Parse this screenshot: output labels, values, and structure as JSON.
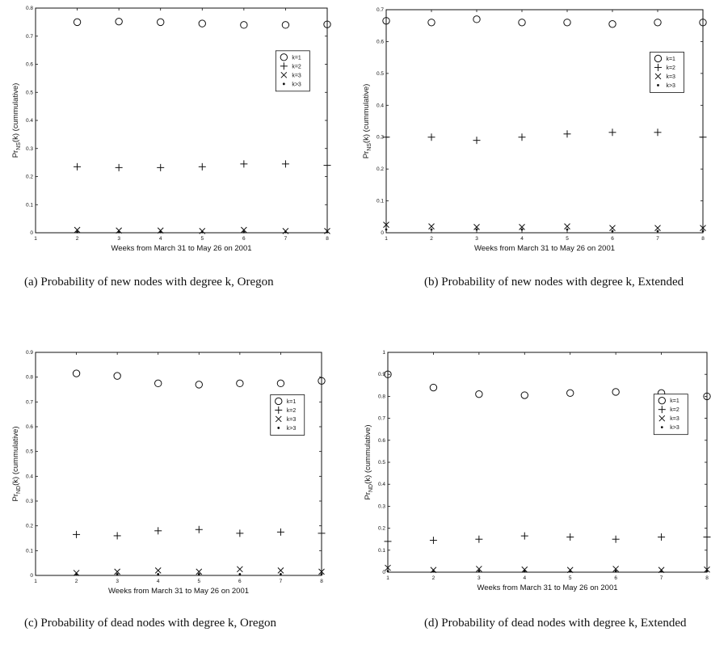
{
  "chart_data": [
    {
      "type": "scatter",
      "ylabel_main": "Pr",
      "ylabel_sub": "NS",
      "ylabel_rest": "(k) (cummulative)",
      "xlabel": "Weeks from March 31 to May 26 on 2001",
      "xlim": [
        1,
        8
      ],
      "ylim": [
        0,
        0.8
      ],
      "xticks": [
        "1",
        "2",
        "3",
        "4",
        "5",
        "6",
        "7",
        "8"
      ],
      "yticks": [
        "0",
        "0.1",
        "0.2",
        "0.3",
        "0.4",
        "0.5",
        "0.6",
        "0.7",
        "0.8"
      ],
      "legend": [
        "k=1",
        "k=2",
        "k=3",
        "k>3"
      ],
      "legend_position": "right",
      "x": [
        2,
        3,
        4,
        5,
        6,
        7,
        8
      ],
      "series": [
        {
          "name": "k=1",
          "marker": "circle",
          "values": [
            0.75,
            0.752,
            0.75,
            0.745,
            0.74,
            0.74,
            0.742
          ]
        },
        {
          "name": "k=2",
          "marker": "plus",
          "values": [
            0.235,
            0.232,
            0.232,
            0.235,
            0.245,
            0.245,
            0.24
          ]
        },
        {
          "name": "k=3",
          "marker": "x",
          "values": [
            0.01,
            0.008,
            0.008,
            0.006,
            0.01,
            0.006,
            0.006
          ]
        },
        {
          "name": "k>3",
          "marker": "dot",
          "values": [
            0.002,
            0.002,
            0.002,
            0.002,
            0.002,
            0.002,
            0.002
          ]
        }
      ],
      "caption": "(a) Probability of new nodes with degree k, Oregon"
    },
    {
      "type": "scatter",
      "ylabel_main": "Pr",
      "ylabel_sub": "NS",
      "ylabel_rest": "(k) (cummulative)",
      "xlabel": "Weeks from March 31 to May 26 on 2001",
      "xlim": [
        1,
        8
      ],
      "ylim": [
        0,
        0.7
      ],
      "xticks": [
        "1",
        "2",
        "3",
        "4",
        "5",
        "6",
        "7",
        "8"
      ],
      "yticks": [
        "0",
        "0.1",
        "0.2",
        "0.3",
        "0.4",
        "0.5",
        "0.6",
        "0.7"
      ],
      "legend": [
        "k=1",
        "k=2",
        "k=3",
        "k>3"
      ],
      "legend_position": "right",
      "x": [
        1,
        2,
        3,
        4,
        5,
        6,
        7,
        8
      ],
      "series": [
        {
          "name": "k=1",
          "marker": "circle",
          "values": [
            0.665,
            0.66,
            0.67,
            0.66,
            0.66,
            0.655,
            0.66,
            0.66
          ]
        },
        {
          "name": "k=2",
          "marker": "plus",
          "values": [
            0.3,
            0.3,
            0.29,
            0.3,
            0.31,
            0.315,
            0.315,
            0.3
          ]
        },
        {
          "name": "k=3",
          "marker": "x",
          "values": [
            0.025,
            0.02,
            0.018,
            0.018,
            0.02,
            0.015,
            0.015,
            0.015
          ]
        },
        {
          "name": "k>3",
          "marker": "dot",
          "values": [
            0.01,
            0.01,
            0.01,
            0.01,
            0.01,
            0.005,
            0.005,
            0.005
          ]
        }
      ],
      "caption": "(b) Probability of new nodes with degree k, Extended"
    },
    {
      "type": "scatter",
      "ylabel_main": "Pr",
      "ylabel_sub": "ND",
      "ylabel_rest": "(k) (cummulative)",
      "xlabel": "Weeks from March 31 to May 26 on 2001",
      "xlim": [
        1,
        8
      ],
      "ylim": [
        0,
        0.9
      ],
      "xticks": [
        "1",
        "2",
        "3",
        "4",
        "5",
        "6",
        "7",
        "8"
      ],
      "yticks": [
        "0",
        "0.1",
        "0.2",
        "0.3",
        "0.4",
        "0.5",
        "0.6",
        "0.7",
        "0.8",
        "0.9"
      ],
      "legend": [
        "k=1",
        "k=2",
        "k=3",
        "k>3"
      ],
      "legend_position": "right",
      "x": [
        2,
        3,
        4,
        5,
        6,
        7,
        8
      ],
      "series": [
        {
          "name": "k=1",
          "marker": "circle",
          "values": [
            0.815,
            0.805,
            0.775,
            0.77,
            0.775,
            0.775,
            0.785
          ]
        },
        {
          "name": "k=2",
          "marker": "plus",
          "values": [
            0.165,
            0.16,
            0.18,
            0.185,
            0.17,
            0.175,
            0.17
          ]
        },
        {
          "name": "k=3",
          "marker": "x",
          "values": [
            0.01,
            0.015,
            0.02,
            0.015,
            0.025,
            0.02,
            0.015
          ]
        },
        {
          "name": "k>3",
          "marker": "dot",
          "values": [
            0.005,
            0.005,
            0.005,
            0.005,
            0.005,
            0.005,
            0.005
          ]
        }
      ],
      "caption": "(c) Probability of dead nodes with degree k, Oregon"
    },
    {
      "type": "scatter",
      "ylabel_main": "Pr",
      "ylabel_sub": "ND",
      "ylabel_rest": "(k) (cummulative)",
      "xlabel": "Weeks from March 31 to May 26 on 2001",
      "xlim": [
        1,
        8
      ],
      "ylim": [
        0,
        1
      ],
      "xticks": [
        "1",
        "2",
        "3",
        "4",
        "5",
        "6",
        "7",
        "8"
      ],
      "yticks": [
        "0",
        "0.1",
        "0.2",
        "0.3",
        "0.4",
        "0.5",
        "0.6",
        "0.7",
        "0.8",
        "0.9",
        "1"
      ],
      "legend": [
        "k=1",
        "k=2",
        "k=3",
        "k>3"
      ],
      "legend_position": "right",
      "x": [
        1,
        2,
        3,
        4,
        5,
        6,
        7,
        8
      ],
      "series": [
        {
          "name": "k=1",
          "marker": "circle",
          "values": [
            0.9,
            0.84,
            0.81,
            0.805,
            0.815,
            0.82,
            0.815,
            0.8
          ]
        },
        {
          "name": "k=2",
          "marker": "plus",
          "values": [
            0.14,
            0.145,
            0.15,
            0.165,
            0.16,
            0.15,
            0.16,
            0.16
          ]
        },
        {
          "name": "k=3",
          "marker": "x",
          "values": [
            0.02,
            0.01,
            0.015,
            0.012,
            0.01,
            0.015,
            0.01,
            0.012
          ]
        },
        {
          "name": "k>3",
          "marker": "dot",
          "values": [
            0.005,
            0.005,
            0.005,
            0.005,
            0.005,
            0.005,
            0.005,
            0.005
          ]
        }
      ],
      "caption": "(d) Probability of dead nodes with degree k, Extended"
    }
  ]
}
